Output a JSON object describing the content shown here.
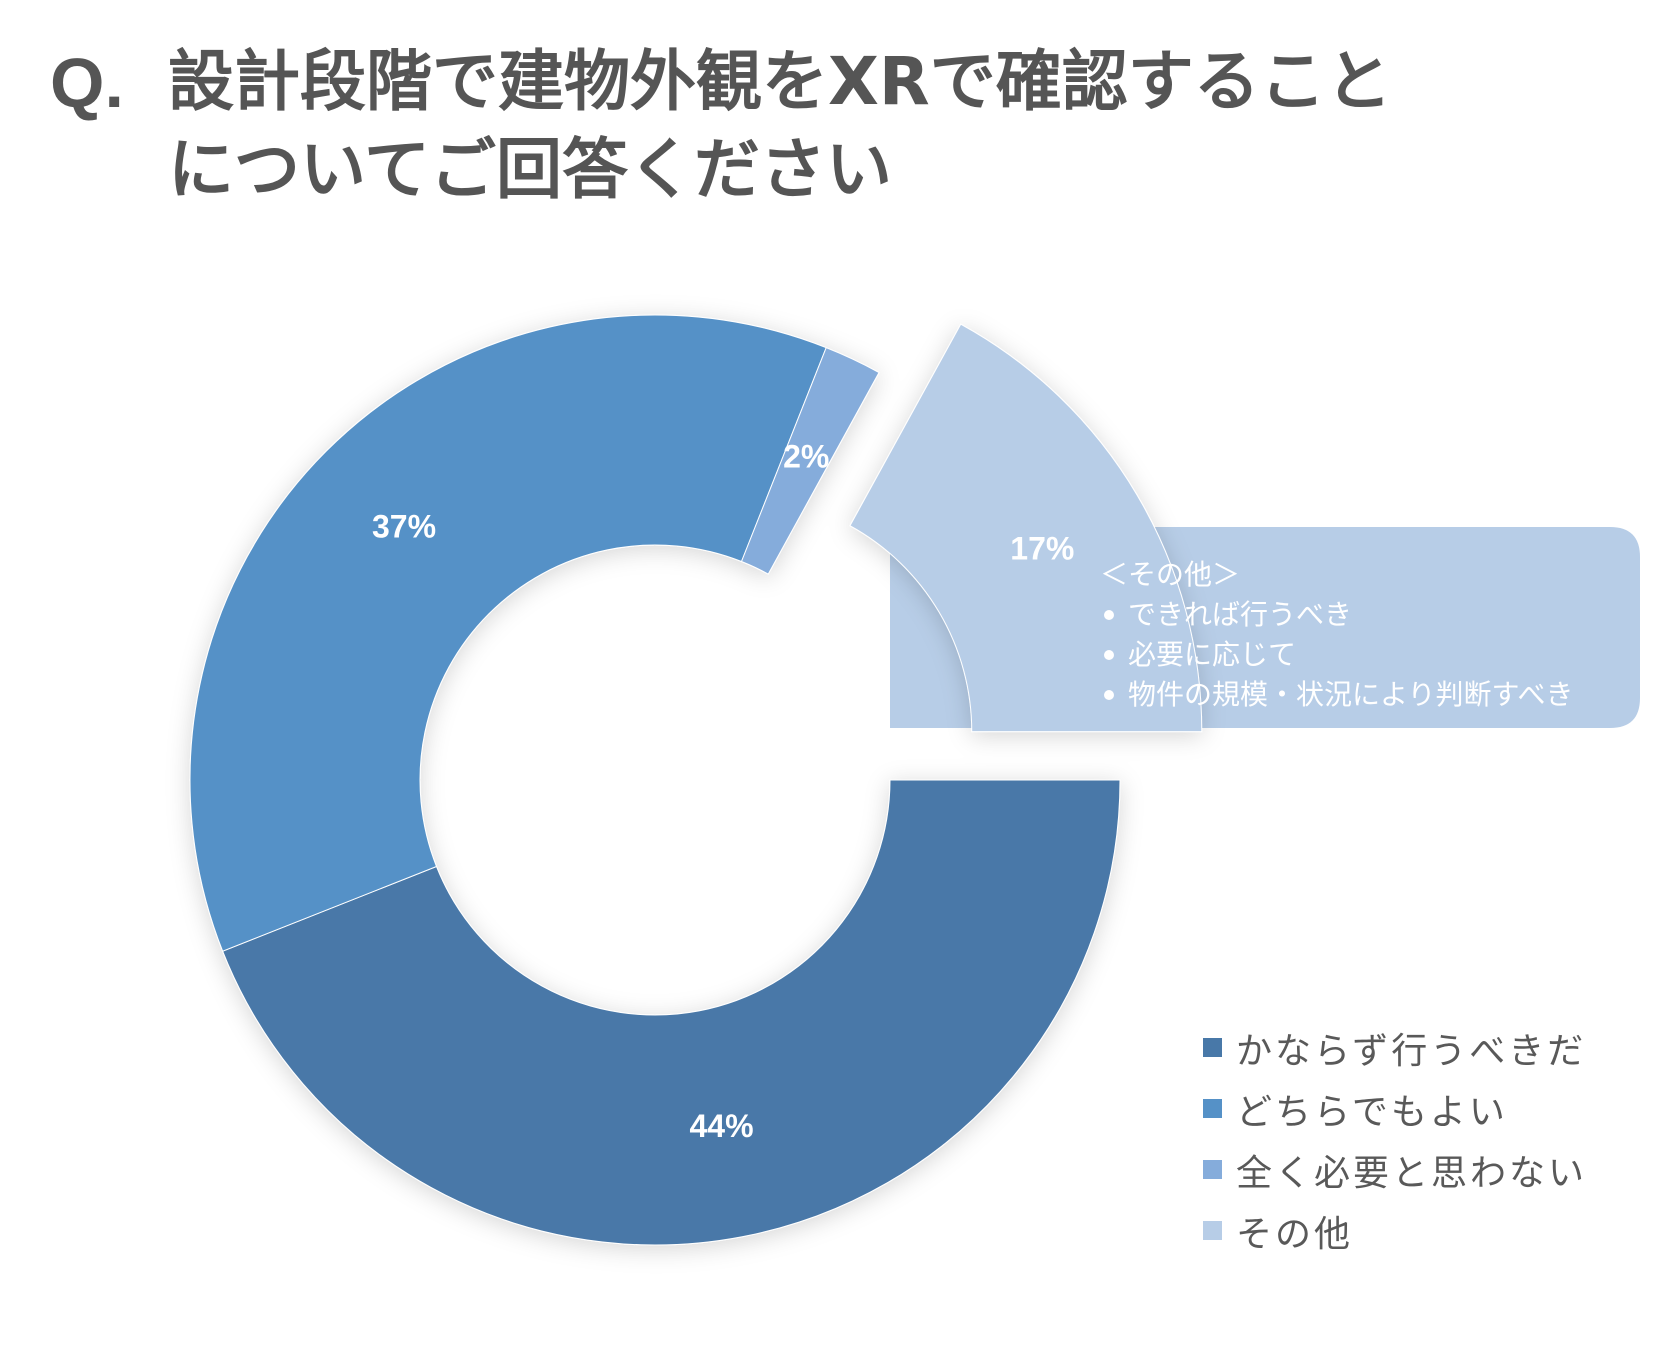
{
  "title": {
    "prefix": "Q.",
    "line1": "設計段階で建物外観をXRで確認すること",
    "line2": "についてご回答ください"
  },
  "chart_data": {
    "type": "pie",
    "variant": "donut",
    "exploded": "その他",
    "categories": [
      "かならず行うべきだ",
      "どちらでもよい",
      "全く必要と思わない",
      "その他"
    ],
    "values": [
      44,
      37,
      2,
      17
    ],
    "value_labels": [
      "44%",
      "37%",
      "2%",
      "17%"
    ],
    "colors": [
      "#4878a8",
      "#5591c7",
      "#85acdb",
      "#b7cde7"
    ],
    "legend_position": "bottom-right"
  },
  "callout": {
    "heading": "＜その他＞",
    "items": [
      "できれば行うべき",
      "必要に応じて",
      "物件の規模・状況により判断すべき"
    ],
    "color": "#b7cde7"
  }
}
